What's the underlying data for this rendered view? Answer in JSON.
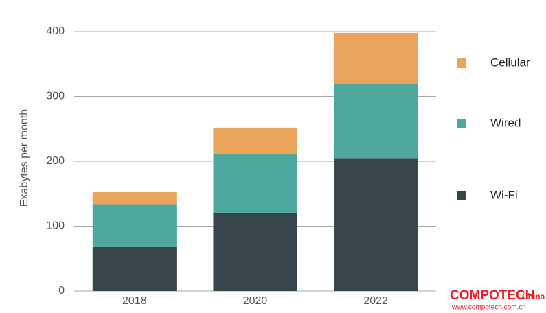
{
  "chart_data": {
    "type": "stacked_bar",
    "ylabel": "Exabytes per month",
    "categories": [
      "2018",
      "2020",
      "2022"
    ],
    "series": [
      {
        "name": "Wi-Fi",
        "color": "#37454d",
        "values": [
          68,
          120,
          205
        ]
      },
      {
        "name": "Wired",
        "color": "#4ea89e",
        "values": [
          66,
          91,
          115
        ]
      },
      {
        "name": "Cellular",
        "color": "#eba45b",
        "values": [
          19,
          41,
          78
        ]
      }
    ],
    "ylim": [
      0,
      400
    ],
    "yticks": [
      0,
      100,
      200,
      300,
      400
    ],
    "grid": true,
    "legend": "right"
  },
  "watermark": {
    "brand": "COMPOTECH",
    "suffix": "China",
    "url": "www.compotech.com.cn"
  }
}
